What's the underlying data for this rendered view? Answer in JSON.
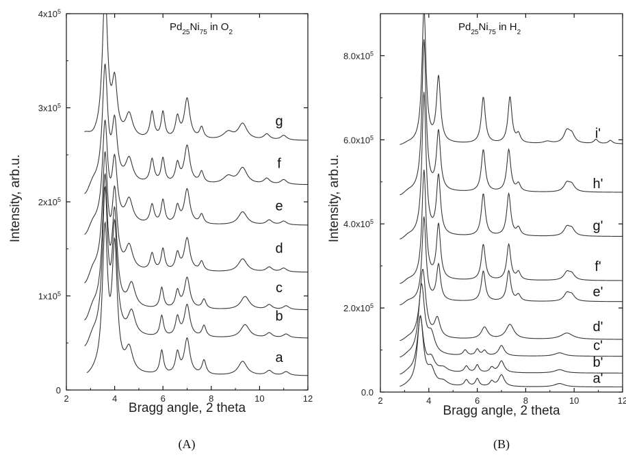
{
  "chart_data": [
    {
      "type": "line",
      "panel": "(A)",
      "title": {
        "base": "Pd",
        "sub1": "25",
        "mid": "Ni",
        "sub2": "75",
        "tail": " in O",
        "sub3": "2"
      },
      "xlabel": "Bragg angle, 2 theta",
      "ylabel": "Intensity, arb.u.",
      "xlim": [
        2,
        12
      ],
      "ylim": [
        0,
        400000
      ],
      "x_ticks": [
        2,
        4,
        6,
        8,
        10,
        12
      ],
      "y_ticks": [
        {
          "value": 0,
          "label": "0",
          "exp": ""
        },
        {
          "value": 100000,
          "label": "1x10",
          "exp": "5"
        },
        {
          "value": 200000,
          "label": "2x10",
          "exp": "5"
        },
        {
          "value": 300000,
          "label": "3x10",
          "exp": "5"
        },
        {
          "value": 400000,
          "label": "4x10",
          "exp": "5"
        }
      ],
      "series": [
        {
          "name": "a",
          "baseline": 15000,
          "x_start": 2.85,
          "start_y": 12000,
          "label_y": 30000,
          "peaks": [
            [
              3.6,
              150000,
              0.13
            ],
            [
              4.0,
              130000,
              0.13
            ],
            [
              4.6,
              25000,
              0.18
            ],
            [
              5.95,
              25000,
              0.09
            ],
            [
              6.6,
              22000,
              0.1
            ],
            [
              7.0,
              38000,
              0.14
            ],
            [
              7.7,
              15000,
              0.1
            ],
            [
              9.3,
              15000,
              0.22
            ],
            [
              10.4,
              5000,
              0.15
            ],
            [
              11.1,
              4000,
              0.15
            ]
          ]
        },
        {
          "name": "b",
          "baseline": 55000,
          "x_start": 2.75,
          "start_y": 42000,
          "label_y": 74000,
          "peaks": [
            [
              3.6,
              150000,
              0.13
            ],
            [
              4.0,
              110000,
              0.13
            ],
            [
              4.7,
              25000,
              0.18
            ],
            [
              5.95,
              22000,
              0.09
            ],
            [
              6.6,
              20000,
              0.1
            ],
            [
              7.0,
              34000,
              0.14
            ],
            [
              7.7,
              12000,
              0.1
            ],
            [
              9.4,
              14000,
              0.22
            ],
            [
              10.4,
              5000,
              0.15
            ],
            [
              11.1,
              4000,
              0.15
            ]
          ]
        },
        {
          "name": "c",
          "baseline": 85000,
          "x_start": 2.75,
          "start_y": 70000,
          "label_y": 104000,
          "peaks": [
            [
              3.6,
              135000,
              0.13
            ],
            [
              4.0,
              95000,
              0.13
            ],
            [
              4.7,
              25000,
              0.18
            ],
            [
              5.95,
              22000,
              0.09
            ],
            [
              6.6,
              18000,
              0.1
            ],
            [
              7.0,
              33000,
              0.14
            ],
            [
              7.7,
              10000,
              0.1
            ],
            [
              9.4,
              14000,
              0.22
            ],
            [
              10.4,
              5000,
              0.15
            ],
            [
              11.1,
              4000,
              0.15
            ]
          ]
        },
        {
          "name": "d",
          "baseline": 125000,
          "x_start": 2.75,
          "start_y": 110000,
          "label_y": 146000,
          "peaks": [
            [
              3.6,
              120000,
              0.13
            ],
            [
              4.0,
              78000,
              0.13
            ],
            [
              4.6,
              25000,
              0.18
            ],
            [
              5.55,
              18000,
              0.1
            ],
            [
              6.0,
              23000,
              0.09
            ],
            [
              6.6,
              18000,
              0.1
            ],
            [
              7.0,
              35000,
              0.14
            ],
            [
              7.6,
              10000,
              0.1
            ],
            [
              9.3,
              14000,
              0.22
            ],
            [
              10.4,
              5000,
              0.15
            ],
            [
              11.0,
              4000,
              0.15
            ]
          ]
        },
        {
          "name": "e",
          "baseline": 175000,
          "x_start": 2.75,
          "start_y": 162000,
          "label_y": 191000,
          "peaks": [
            [
              3.6,
              105000,
              0.13
            ],
            [
              4.0,
              63000,
              0.13
            ],
            [
              4.6,
              25000,
              0.18
            ],
            [
              5.55,
              20000,
              0.1
            ],
            [
              6.0,
              25000,
              0.09
            ],
            [
              6.6,
              18000,
              0.1
            ],
            [
              7.0,
              37000,
              0.14
            ],
            [
              7.6,
              10000,
              0.1
            ],
            [
              9.3,
              14000,
              0.22
            ],
            [
              10.4,
              5000,
              0.15
            ],
            [
              11.0,
              4000,
              0.15
            ]
          ]
        },
        {
          "name": "f",
          "baseline": 218000,
          "x_start": 2.75,
          "start_y": 205000,
          "label_y": 236000,
          "peaks": [
            [
              3.6,
              122000,
              0.13
            ],
            [
              4.0,
              60000,
              0.13
            ],
            [
              4.6,
              25000,
              0.18
            ],
            [
              5.55,
              25000,
              0.1
            ],
            [
              6.0,
              26000,
              0.09
            ],
            [
              6.6,
              20000,
              0.1
            ],
            [
              7.0,
              40000,
              0.14
            ],
            [
              7.6,
              12000,
              0.1
            ],
            [
              8.7,
              8000,
              0.25
            ],
            [
              9.3,
              17000,
              0.22
            ],
            [
              10.3,
              6000,
              0.15
            ],
            [
              11.0,
              5000,
              0.15
            ]
          ]
        },
        {
          "name": "g",
          "baseline": 265000,
          "x_start": 2.75,
          "start_y": 270000,
          "label_y": 281000,
          "peaks": [
            [
              3.6,
              157000,
              0.13
            ],
            [
              4.0,
              55000,
              0.13
            ],
            [
              4.6,
              25000,
              0.18
            ],
            [
              5.55,
              28000,
              0.1
            ],
            [
              6.0,
              28000,
              0.09
            ],
            [
              6.6,
              22000,
              0.1
            ],
            [
              7.0,
              43000,
              0.14
            ],
            [
              7.6,
              12000,
              0.1
            ],
            [
              8.7,
              8000,
              0.25
            ],
            [
              9.3,
              17000,
              0.22
            ],
            [
              10.3,
              6000,
              0.15
            ],
            [
              11.0,
              5000,
              0.15
            ]
          ]
        }
      ]
    },
    {
      "type": "line",
      "panel": "(B)",
      "title": {
        "base": "Pd",
        "sub1": "25",
        "mid": "Ni",
        "sub2": "75",
        "tail": " in H",
        "sub3": "2"
      },
      "xlabel": "Bragg angle, 2 theta",
      "ylabel": "Intensity, arb.u.",
      "xlim": [
        2,
        12
      ],
      "ylim": [
        0,
        900000
      ],
      "x_ticks": [
        2,
        4,
        6,
        8,
        10,
        12
      ],
      "y_ticks": [
        {
          "value": 0,
          "label": "0.0",
          "exp": ""
        },
        {
          "value": 200000,
          "label": "2.0x10",
          "exp": "5"
        },
        {
          "value": 400000,
          "label": "4.0x10",
          "exp": "5"
        },
        {
          "value": 600000,
          "label": "6.0x10",
          "exp": "5"
        },
        {
          "value": 800000,
          "label": "8.0x10",
          "exp": "5"
        }
      ],
      "series": [
        {
          "name": "a'",
          "baseline": 12000,
          "x_start": 2.8,
          "start_y": 8000,
          "label_y": 22000,
          "peaks": [
            [
              3.65,
              165000,
              0.15
            ],
            [
              4.1,
              35000,
              0.18
            ],
            [
              4.6,
              10000,
              0.2
            ],
            [
              5.55,
              15000,
              0.1
            ],
            [
              6.0,
              18000,
              0.09
            ],
            [
              6.6,
              12000,
              0.1
            ],
            [
              7.0,
              28000,
              0.14
            ],
            [
              9.4,
              8000,
              0.25
            ]
          ]
        },
        {
          "name": "b'",
          "baseline": 45000,
          "x_start": 2.8,
          "start_y": 38000,
          "label_y": 60000,
          "peaks": [
            [
              3.65,
              130000,
              0.15
            ],
            [
              4.1,
              30000,
              0.18
            ],
            [
              4.6,
              10000,
              0.2
            ],
            [
              5.55,
              15000,
              0.1
            ],
            [
              6.0,
              18000,
              0.09
            ],
            [
              6.6,
              12000,
              0.1
            ],
            [
              7.0,
              28000,
              0.14
            ],
            [
              9.4,
              8000,
              0.25
            ]
          ]
        },
        {
          "name": "c'",
          "baseline": 85000,
          "x_start": 2.8,
          "start_y": 78000,
          "label_y": 100000,
          "peaks": [
            [
              3.7,
              165000,
              0.15
            ],
            [
              4.1,
              45000,
              0.18
            ],
            [
              5.5,
              13000,
              0.1
            ],
            [
              6.0,
              15000,
              0.09
            ],
            [
              6.3,
              12000,
              0.1
            ],
            [
              7.0,
              25000,
              0.14
            ],
            [
              9.4,
              8000,
              0.25
            ]
          ]
        },
        {
          "name": "d'",
          "baseline": 125000,
          "x_start": 2.8,
          "start_y": 118000,
          "label_y": 145000,
          "peaks": [
            [
              3.75,
              165000,
              0.15
            ],
            [
              4.35,
              45000,
              0.14
            ],
            [
              6.3,
              28000,
              0.16
            ],
            [
              7.35,
              35000,
              0.2
            ],
            [
              9.7,
              15000,
              0.3
            ]
          ]
        },
        {
          "name": "e'",
          "baseline": 215000,
          "x_start": 2.8,
          "start_y": 205000,
          "label_y": 228000,
          "peaks": [
            [
              3.8,
              200000,
              0.1
            ],
            [
              4.4,
              85000,
              0.1
            ],
            [
              6.25,
              72000,
              0.1
            ],
            [
              7.3,
              72000,
              0.1
            ],
            [
              7.7,
              15000,
              0.1
            ],
            [
              9.7,
              18000,
              0.15
            ],
            [
              9.9,
              14000,
              0.15
            ]
          ]
        },
        {
          "name": "f'",
          "baseline": 265000,
          "x_start": 2.8,
          "start_y": 255000,
          "label_y": 288000,
          "peaks": [
            [
              3.8,
              260000,
              0.1
            ],
            [
              4.4,
              130000,
              0.1
            ],
            [
              6.25,
              85000,
              0.1
            ],
            [
              7.3,
              85000,
              0.1
            ],
            [
              7.7,
              18000,
              0.1
            ],
            [
              9.7,
              18000,
              0.15
            ],
            [
              9.9,
              14000,
              0.15
            ]
          ]
        },
        {
          "name": "g'",
          "baseline": 370000,
          "x_start": 2.8,
          "start_y": 360000,
          "label_y": 385000,
          "peaks": [
            [
              3.8,
              340000,
              0.1
            ],
            [
              4.4,
              140000,
              0.1
            ],
            [
              6.25,
              100000,
              0.1
            ],
            [
              7.3,
              100000,
              0.1
            ],
            [
              7.7,
              18000,
              0.1
            ],
            [
              9.7,
              20000,
              0.15
            ],
            [
              9.9,
              16000,
              0.15
            ]
          ]
        },
        {
          "name": "h'",
          "baseline": 475000,
          "x_start": 2.8,
          "start_y": 465000,
          "label_y": 485000,
          "peaks": [
            [
              3.8,
              360000,
              0.1
            ],
            [
              4.4,
              140000,
              0.1
            ],
            [
              6.25,
              100000,
              0.1
            ],
            [
              7.3,
              100000,
              0.1
            ],
            [
              7.7,
              18000,
              0.1
            ],
            [
              9.7,
              20000,
              0.15
            ],
            [
              9.9,
              16000,
              0.15
            ]
          ]
        },
        {
          "name": "i'",
          "baseline": 590000,
          "x_start": 2.8,
          "start_y": 585000,
          "label_y": 605000,
          "peaks": [
            [
              3.8,
              320000,
              0.1
            ],
            [
              4.4,
              155000,
              0.1
            ],
            [
              6.25,
              110000,
              0.1
            ],
            [
              7.35,
              110000,
              0.1
            ],
            [
              7.7,
              20000,
              0.1
            ],
            [
              8.9,
              5000,
              0.2
            ],
            [
              9.7,
              28000,
              0.15
            ],
            [
              9.9,
              20000,
              0.15
            ],
            [
              10.9,
              10000,
              0.1
            ],
            [
              11.5,
              8000,
              0.1
            ]
          ]
        }
      ]
    }
  ]
}
